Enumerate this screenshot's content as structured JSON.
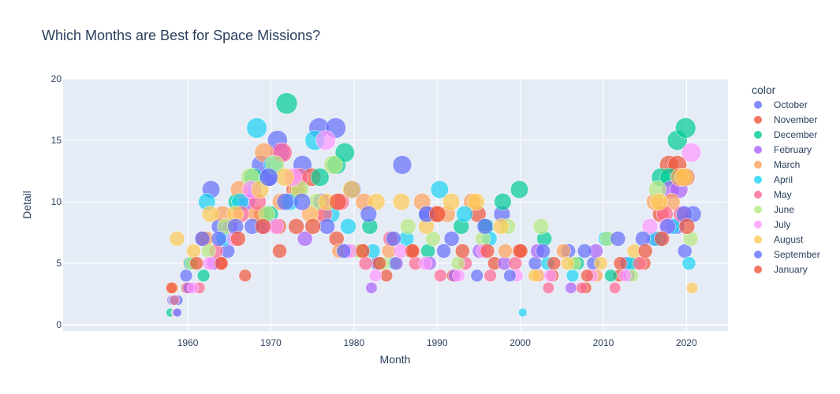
{
  "chart_data": {
    "type": "scatter",
    "title": "Which Months are Best for Space Missions?",
    "xlabel": "Month",
    "ylabel": "Detail",
    "xlim": [
      1945,
      2025
    ],
    "ylim": [
      -0.5,
      20
    ],
    "xticks": [
      1960,
      1970,
      1980,
      1990,
      2000,
      2010,
      2020
    ],
    "yticks": [
      0,
      5,
      10,
      15,
      20
    ],
    "grid": true,
    "legend_title": "color",
    "legend_position": "right",
    "marker_size_encodes": "Detail",
    "series": [
      {
        "name": "October",
        "color": "#636efa",
        "points": [
          [
            1958.8,
            2
          ],
          [
            1959.8,
            4
          ],
          [
            1962.8,
            11
          ],
          [
            1963.8,
            8
          ],
          [
            1964.8,
            6
          ],
          [
            1967.8,
            11
          ],
          [
            1968.8,
            13
          ],
          [
            1969.8,
            12
          ],
          [
            1970.8,
            15
          ],
          [
            1973.8,
            13
          ],
          [
            1975.8,
            16
          ],
          [
            1977.8,
            16
          ],
          [
            1979.8,
            11
          ],
          [
            1982.8,
            5
          ],
          [
            1985.8,
            13
          ],
          [
            1988.8,
            9
          ],
          [
            1990.8,
            6
          ],
          [
            1994.8,
            4
          ],
          [
            1997.8,
            9
          ],
          [
            2001.8,
            5
          ],
          [
            2005.8,
            6
          ],
          [
            2008.8,
            5
          ],
          [
            2012.8,
            5
          ],
          [
            2016.8,
            7
          ],
          [
            2018.8,
            8
          ],
          [
            2019.8,
            6
          ],
          [
            2020.8,
            9
          ]
        ]
      },
      {
        "name": "November",
        "color": "#EF553B",
        "points": [
          [
            1959.9,
            3
          ],
          [
            1961.9,
            7
          ],
          [
            1963.9,
            5
          ],
          [
            1966.9,
            4
          ],
          [
            1968.9,
            9
          ],
          [
            1970.9,
            8
          ],
          [
            1972.9,
            11
          ],
          [
            1974.9,
            12
          ],
          [
            1977.9,
            7
          ],
          [
            1980.9,
            6
          ],
          [
            1983.9,
            4
          ],
          [
            1986.9,
            6
          ],
          [
            1989.9,
            9
          ],
          [
            1991.9,
            4
          ],
          [
            1994.9,
            9
          ],
          [
            1996.9,
            5
          ],
          [
            1999.9,
            6
          ],
          [
            2003.9,
            4
          ],
          [
            2007.9,
            3
          ],
          [
            2011.9,
            4
          ],
          [
            2014.9,
            5
          ],
          [
            2016.9,
            9
          ],
          [
            2017.9,
            13
          ],
          [
            2018.9,
            13
          ],
          [
            2019.9,
            12
          ]
        ]
      },
      {
        "name": "December",
        "color": "#00cc96",
        "points": [
          [
            1957.9,
            1
          ],
          [
            1961.9,
            4
          ],
          [
            1965.9,
            10
          ],
          [
            1967.9,
            12
          ],
          [
            1969.9,
            9
          ],
          [
            1971.9,
            18
          ],
          [
            1975.9,
            12
          ],
          [
            1977.9,
            13
          ],
          [
            1978.9,
            14
          ],
          [
            1981.9,
            8
          ],
          [
            1984.9,
            5
          ],
          [
            1988.9,
            6
          ],
          [
            1992.9,
            8
          ],
          [
            1995.9,
            8
          ],
          [
            1997.9,
            10
          ],
          [
            1999.9,
            11
          ],
          [
            2002.9,
            7
          ],
          [
            2006.9,
            5
          ],
          [
            2010.9,
            4
          ],
          [
            2013.9,
            5
          ],
          [
            2016.9,
            12
          ],
          [
            2017.9,
            12
          ],
          [
            2018.9,
            15
          ],
          [
            2019.9,
            16
          ]
        ]
      },
      {
        "name": "February",
        "color": "#ab63fa",
        "points": [
          [
            1958.1,
            2
          ],
          [
            1960.1,
            3
          ],
          [
            1963.1,
            5
          ],
          [
            1965.1,
            8
          ],
          [
            1967.1,
            10
          ],
          [
            1969.1,
            8
          ],
          [
            1971.1,
            14
          ],
          [
            1974.1,
            7
          ],
          [
            1976.1,
            10
          ],
          [
            1979.1,
            6
          ],
          [
            1982.1,
            3
          ],
          [
            1985.1,
            5
          ],
          [
            1989.1,
            5
          ],
          [
            1992.1,
            4
          ],
          [
            1995.1,
            6
          ],
          [
            1998.1,
            5
          ],
          [
            2002.1,
            6
          ],
          [
            2006.1,
            3
          ],
          [
            2009.1,
            6
          ],
          [
            2013.1,
            4
          ],
          [
            2016.1,
            7
          ],
          [
            2018.1,
            11
          ],
          [
            2019.1,
            11
          ]
        ]
      },
      {
        "name": "March",
        "color": "#FFA15A",
        "points": [
          [
            1958.2,
            3
          ],
          [
            1960.2,
            5
          ],
          [
            1962.2,
            7
          ],
          [
            1964.2,
            9
          ],
          [
            1966.2,
            11
          ],
          [
            1968.2,
            9
          ],
          [
            1969.2,
            14
          ],
          [
            1971.2,
            10
          ],
          [
            1973.2,
            11
          ],
          [
            1976.2,
            9
          ],
          [
            1978.2,
            6
          ],
          [
            1981.2,
            10
          ],
          [
            1984.2,
            6
          ],
          [
            1988.2,
            10
          ],
          [
            1991.2,
            9
          ],
          [
            1994.2,
            10
          ],
          [
            1998.2,
            6
          ],
          [
            2002.2,
            4
          ],
          [
            2005.2,
            6
          ],
          [
            2009.2,
            4
          ],
          [
            2014.2,
            5
          ],
          [
            2016.2,
            10
          ],
          [
            2018.2,
            10
          ],
          [
            2019.2,
            12
          ]
        ]
      },
      {
        "name": "April",
        "color": "#19d3f3",
        "points": [
          [
            1958.3,
            2
          ],
          [
            1960.3,
            5
          ],
          [
            1962.3,
            10
          ],
          [
            1964.3,
            7
          ],
          [
            1966.3,
            10
          ],
          [
            1968.3,
            16
          ],
          [
            1970.3,
            13
          ],
          [
            1972.3,
            10
          ],
          [
            1975.3,
            15
          ],
          [
            1977.3,
            9
          ],
          [
            1979.3,
            8
          ],
          [
            1982.3,
            6
          ],
          [
            1986.3,
            7
          ],
          [
            1990.3,
            11
          ],
          [
            1993.3,
            9
          ],
          [
            1996.3,
            7
          ],
          [
            2000.3,
            1
          ],
          [
            2003.3,
            5
          ],
          [
            2006.3,
            4
          ],
          [
            2010.3,
            7
          ],
          [
            2013.3,
            5
          ],
          [
            2016.3,
            7
          ],
          [
            2018.3,
            8
          ],
          [
            2020.3,
            5
          ]
        ]
      },
      {
        "name": "May",
        "color": "#FF6692",
        "points": [
          [
            1958.4,
            2
          ],
          [
            1961.4,
            3
          ],
          [
            1963.4,
            6
          ],
          [
            1966.4,
            9
          ],
          [
            1968.4,
            10
          ],
          [
            1971.4,
            14
          ],
          [
            1973.4,
            12
          ],
          [
            1976.4,
            9
          ],
          [
            1978.4,
            10
          ],
          [
            1981.4,
            5
          ],
          [
            1984.4,
            7
          ],
          [
            1987.4,
            5
          ],
          [
            1990.4,
            4
          ],
          [
            1993.4,
            5
          ],
          [
            1996.4,
            4
          ],
          [
            1999.4,
            5
          ],
          [
            2003.4,
            3
          ],
          [
            2007.4,
            3
          ],
          [
            2011.4,
            3
          ],
          [
            2014.4,
            5
          ],
          [
            2017.4,
            9
          ],
          [
            2019.4,
            9
          ]
        ]
      },
      {
        "name": "June",
        "color": "#B6E880",
        "points": [
          [
            1958.5,
            1
          ],
          [
            1960.5,
            5
          ],
          [
            1962.5,
            6
          ],
          [
            1964.5,
            8
          ],
          [
            1967.5,
            12
          ],
          [
            1969.5,
            9
          ],
          [
            1970.5,
            13
          ],
          [
            1973.5,
            11
          ],
          [
            1975.5,
            10
          ],
          [
            1977.5,
            13
          ],
          [
            1980.5,
            6
          ],
          [
            1983.5,
            5
          ],
          [
            1986.5,
            8
          ],
          [
            1989.5,
            7
          ],
          [
            1992.5,
            5
          ],
          [
            1995.5,
            7
          ],
          [
            1998.5,
            8
          ],
          [
            2002.5,
            8
          ],
          [
            2006.5,
            5
          ],
          [
            2010.5,
            7
          ],
          [
            2013.5,
            4
          ],
          [
            2016.5,
            11
          ],
          [
            2020.5,
            7
          ]
        ]
      },
      {
        "name": "July",
        "color": "#FF97FF",
        "points": [
          [
            1958.6,
            1
          ],
          [
            1960.6,
            3
          ],
          [
            1962.6,
            5
          ],
          [
            1965.6,
            7
          ],
          [
            1967.6,
            11
          ],
          [
            1970.6,
            8
          ],
          [
            1972.6,
            12
          ],
          [
            1974.6,
            9
          ],
          [
            1976.6,
            15
          ],
          [
            1979.6,
            6
          ],
          [
            1982.6,
            4
          ],
          [
            1985.6,
            6
          ],
          [
            1988.6,
            5
          ],
          [
            1992.6,
            4
          ],
          [
            1995.6,
            6
          ],
          [
            1999.6,
            4
          ],
          [
            2003.6,
            4
          ],
          [
            2008.6,
            4
          ],
          [
            2012.6,
            4
          ],
          [
            2015.6,
            8
          ],
          [
            2017.6,
            8
          ],
          [
            2020.6,
            14
          ]
        ]
      },
      {
        "name": "August",
        "color": "#FECB52",
        "points": [
          [
            1958.7,
            7
          ],
          [
            1960.7,
            6
          ],
          [
            1962.7,
            9
          ],
          [
            1965.7,
            9
          ],
          [
            1968.7,
            11
          ],
          [
            1971.7,
            12
          ],
          [
            1974.7,
            9
          ],
          [
            1976.7,
            10
          ],
          [
            1979.7,
            11
          ],
          [
            1982.7,
            10
          ],
          [
            1985.7,
            10
          ],
          [
            1988.7,
            8
          ],
          [
            1991.7,
            10
          ],
          [
            1994.7,
            10
          ],
          [
            1997.7,
            8
          ],
          [
            2001.7,
            4
          ],
          [
            2005.7,
            5
          ],
          [
            2009.7,
            5
          ],
          [
            2013.7,
            6
          ],
          [
            2016.7,
            10
          ],
          [
            2019.7,
            12
          ],
          [
            2020.7,
            3
          ]
        ]
      },
      {
        "name": "September",
        "color": "#636efa",
        "points": [
          [
            1958.75,
            1
          ],
          [
            1961.75,
            7
          ],
          [
            1963.75,
            7
          ],
          [
            1965.75,
            8
          ],
          [
            1967.75,
            8
          ],
          [
            1969.75,
            12
          ],
          [
            1971.75,
            10
          ],
          [
            1973.75,
            10
          ],
          [
            1976.75,
            8
          ],
          [
            1978.75,
            6
          ],
          [
            1981.75,
            9
          ],
          [
            1984.75,
            7
          ],
          [
            1988.75,
            9
          ],
          [
            1991.75,
            7
          ],
          [
            1995.75,
            8
          ],
          [
            1998.75,
            4
          ],
          [
            2002.75,
            6
          ],
          [
            2007.75,
            6
          ],
          [
            2011.75,
            7
          ],
          [
            2014.75,
            7
          ],
          [
            2017.75,
            8
          ],
          [
            2019.75,
            9
          ]
        ]
      },
      {
        "name": "January",
        "color": "#EF553B",
        "points": [
          [
            1958.05,
            3
          ],
          [
            1961.05,
            5
          ],
          [
            1964.05,
            5
          ],
          [
            1966.05,
            7
          ],
          [
            1969.05,
            8
          ],
          [
            1971.05,
            6
          ],
          [
            1973.05,
            8
          ],
          [
            1975.05,
            8
          ],
          [
            1978.05,
            10
          ],
          [
            1981.05,
            6
          ],
          [
            1983.05,
            5
          ],
          [
            1987.05,
            6
          ],
          [
            1990.05,
            9
          ],
          [
            1993.05,
            6
          ],
          [
            1996.05,
            6
          ],
          [
            2000.05,
            6
          ],
          [
            2004.05,
            5
          ],
          [
            2008.05,
            4
          ],
          [
            2012.05,
            5
          ],
          [
            2015.05,
            6
          ],
          [
            2017.05,
            7
          ],
          [
            2020.05,
            8
          ]
        ]
      }
    ]
  }
}
